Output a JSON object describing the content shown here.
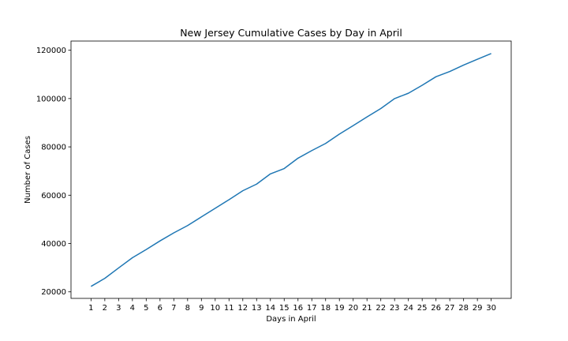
{
  "chart_data": {
    "type": "line",
    "title": "New Jersey Cumulative Cases by Day in April",
    "xlabel": "Days in April",
    "ylabel": "Number of Cases",
    "x": [
      1,
      2,
      3,
      4,
      5,
      6,
      7,
      8,
      9,
      10,
      11,
      12,
      13,
      14,
      15,
      16,
      17,
      18,
      19,
      20,
      21,
      22,
      23,
      24,
      25,
      26,
      27,
      28,
      29,
      30
    ],
    "x_ticks": [
      "1",
      "2",
      "3",
      "4",
      "5",
      "6",
      "7",
      "8",
      "9",
      "10",
      "11",
      "12",
      "13",
      "14",
      "15",
      "16",
      "17",
      "18",
      "19",
      "20",
      "21",
      "22",
      "23",
      "24",
      "25",
      "26",
      "27",
      "28",
      "29",
      "30"
    ],
    "y_ticks": [
      20000,
      40000,
      60000,
      80000,
      100000,
      120000
    ],
    "y_tick_labels": [
      "20000",
      "40000",
      "60000",
      "80000",
      "100000",
      "120000"
    ],
    "xlim": [
      -0.45,
      31.45
    ],
    "ylim": [
      17300,
      123800
    ],
    "grid": false,
    "series": [
      {
        "color": "#1f77b4",
        "values": [
          22255,
          25590,
          29895,
          34124,
          37505,
          41090,
          44416,
          47437,
          51027,
          54588,
          58151,
          61850,
          64584,
          68824,
          71030,
          75317,
          78467,
          81420,
          85301,
          88806,
          92387,
          95865,
          99989,
          102196,
          105498,
          109038,
          111188,
          113856,
          116264,
          118652
        ]
      }
    ]
  }
}
